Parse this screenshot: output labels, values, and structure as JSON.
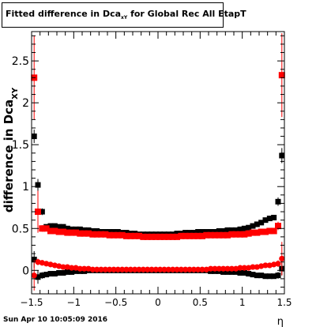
{
  "title": {
    "main": "Fitted difference in Dca",
    "sub": "xY",
    "rest": " for Global Rec All EtapT"
  },
  "datestamp": "Sun Apr 10 10:05:09 2016",
  "colors": {
    "black_series": "#000000",
    "red_series": "#ff0000",
    "frame": "#000000"
  },
  "chart_data": {
    "type": "scatter",
    "xlabel": "η",
    "ylabel_main": "difference in Dca",
    "ylabel_sub": "XY",
    "xlim": [
      -1.5,
      1.5
    ],
    "ylim": [
      -0.28,
      2.85
    ],
    "x_ticks": [
      -1.5,
      -1,
      -0.5,
      0,
      0.5,
      1,
      1.5
    ],
    "x_tick_labels": [
      "−1.5",
      "−1",
      "−0.5",
      "0",
      "0.5",
      "1",
      "1.5"
    ],
    "y_ticks": [
      0,
      0.5,
      1,
      1.5,
      2,
      2.5
    ],
    "y_tick_labels": [
      "0",
      "0.5",
      "1",
      "1.5",
      "2",
      "2.5"
    ],
    "grid": false,
    "series": [
      {
        "color": "black",
        "marker": "square",
        "role": "width",
        "x": [
          -1.47,
          -1.425,
          -1.375,
          -1.325,
          -1.275,
          -1.225,
          -1.175,
          -1.125,
          -1.075,
          -1.025,
          -0.975,
          -0.925,
          -0.875,
          -0.825,
          -0.775,
          -0.725,
          -0.675,
          -0.625,
          -0.575,
          -0.525,
          -0.475,
          -0.425,
          -0.375,
          -0.325,
          -0.275,
          -0.225,
          -0.175,
          -0.125,
          -0.075,
          -0.025,
          0.025,
          0.075,
          0.125,
          0.175,
          0.225,
          0.275,
          0.325,
          0.375,
          0.425,
          0.475,
          0.525,
          0.575,
          0.625,
          0.675,
          0.725,
          0.775,
          0.825,
          0.875,
          0.925,
          0.975,
          1.025,
          1.075,
          1.125,
          1.175,
          1.225,
          1.275,
          1.325,
          1.375,
          1.425,
          1.47
        ],
        "y": [
          1.6,
          1.02,
          0.7,
          0.52,
          0.53,
          0.53,
          0.52,
          0.52,
          0.5,
          0.49,
          0.49,
          0.49,
          0.48,
          0.48,
          0.47,
          0.47,
          0.46,
          0.46,
          0.46,
          0.46,
          0.46,
          0.45,
          0.45,
          0.44,
          0.44,
          0.43,
          0.43,
          0.43,
          0.43,
          0.43,
          0.43,
          0.43,
          0.43,
          0.43,
          0.44,
          0.44,
          0.45,
          0.45,
          0.45,
          0.46,
          0.46,
          0.46,
          0.46,
          0.46,
          0.47,
          0.47,
          0.48,
          0.48,
          0.48,
          0.49,
          0.5,
          0.51,
          0.53,
          0.55,
          0.57,
          0.6,
          0.62,
          0.63,
          0.82,
          1.37
        ],
        "err": [
          0.08,
          0.07,
          0.04,
          0.02,
          0.01,
          0.01,
          0.01,
          0.01,
          0.01,
          0.01,
          0.01,
          0.01,
          0.01,
          0.01,
          0.01,
          0.01,
          0.01,
          0.01,
          0.01,
          0.01,
          0.01,
          0.01,
          0.01,
          0.01,
          0.01,
          0.01,
          0.01,
          0.01,
          0.01,
          0.01,
          0.01,
          0.01,
          0.01,
          0.01,
          0.01,
          0.01,
          0.01,
          0.01,
          0.01,
          0.01,
          0.01,
          0.01,
          0.01,
          0.01,
          0.01,
          0.01,
          0.01,
          0.01,
          0.01,
          0.01,
          0.01,
          0.01,
          0.01,
          0.01,
          0.02,
          0.02,
          0.03,
          0.03,
          0.05,
          0.09
        ]
      },
      {
        "color": "black",
        "marker": "square",
        "role": "mean",
        "x": [
          -1.47,
          -1.425,
          -1.375,
          -1.325,
          -1.275,
          -1.225,
          -1.175,
          -1.125,
          -1.075,
          -1.025,
          -0.975,
          -0.925,
          -0.875,
          -0.825,
          -0.775,
          -0.725,
          -0.675,
          -0.625,
          -0.575,
          -0.525,
          -0.475,
          -0.425,
          -0.375,
          -0.325,
          -0.275,
          -0.225,
          -0.175,
          -0.125,
          -0.075,
          -0.025,
          0.025,
          0.075,
          0.125,
          0.175,
          0.225,
          0.275,
          0.325,
          0.375,
          0.425,
          0.475,
          0.525,
          0.575,
          0.625,
          0.675,
          0.725,
          0.775,
          0.825,
          0.875,
          0.925,
          0.975,
          1.025,
          1.075,
          1.125,
          1.175,
          1.225,
          1.275,
          1.325,
          1.375,
          1.425,
          1.47
        ],
        "y": [
          0.13,
          -0.08,
          -0.06,
          -0.05,
          -0.04,
          -0.04,
          -0.03,
          -0.03,
          -0.02,
          -0.02,
          -0.01,
          -0.01,
          -0.01,
          0.0,
          0.0,
          0.0,
          0.0,
          0.0,
          0.0,
          0.0,
          0.0,
          0.0,
          0.0,
          0.0,
          0.0,
          0.0,
          0.0,
          0.0,
          0.0,
          0.0,
          0.0,
          0.0,
          0.0,
          0.0,
          0.0,
          0.0,
          0.0,
          0.0,
          0.0,
          0.0,
          0.0,
          0.0,
          -0.01,
          -0.01,
          -0.01,
          -0.02,
          -0.02,
          -0.02,
          -0.02,
          -0.03,
          -0.03,
          -0.04,
          -0.05,
          -0.06,
          -0.06,
          -0.07,
          -0.07,
          -0.07,
          -0.06,
          0.02
        ],
        "err": [
          0.1,
          0.08,
          0.04,
          0.02,
          0.01,
          0.01,
          0.01,
          0.01,
          0.01,
          0.01,
          0.01,
          0.01,
          0.01,
          0.01,
          0.01,
          0.01,
          0.01,
          0.01,
          0.01,
          0.01,
          0.01,
          0.01,
          0.01,
          0.01,
          0.01,
          0.01,
          0.01,
          0.01,
          0.01,
          0.01,
          0.01,
          0.01,
          0.01,
          0.01,
          0.01,
          0.01,
          0.01,
          0.01,
          0.01,
          0.01,
          0.01,
          0.01,
          0.01,
          0.01,
          0.01,
          0.01,
          0.01,
          0.01,
          0.01,
          0.01,
          0.01,
          0.01,
          0.01,
          0.01,
          0.02,
          0.02,
          0.03,
          0.03,
          0.04,
          0.08
        ]
      },
      {
        "color": "red",
        "marker": "square",
        "role": "width",
        "x": [
          -1.47,
          -1.425,
          -1.375,
          -1.325,
          -1.275,
          -1.225,
          -1.175,
          -1.125,
          -1.075,
          -1.025,
          -0.975,
          -0.925,
          -0.875,
          -0.825,
          -0.775,
          -0.725,
          -0.675,
          -0.625,
          -0.575,
          -0.525,
          -0.475,
          -0.425,
          -0.375,
          -0.325,
          -0.275,
          -0.225,
          -0.175,
          -0.125,
          -0.075,
          -0.025,
          0.025,
          0.075,
          0.125,
          0.175,
          0.225,
          0.275,
          0.325,
          0.375,
          0.425,
          0.475,
          0.525,
          0.575,
          0.625,
          0.675,
          0.725,
          0.775,
          0.825,
          0.875,
          0.925,
          0.975,
          1.025,
          1.075,
          1.125,
          1.175,
          1.225,
          1.275,
          1.325,
          1.375,
          1.425,
          1.47
        ],
        "y": [
          2.3,
          0.7,
          0.5,
          0.5,
          0.47,
          0.47,
          0.46,
          0.46,
          0.45,
          0.45,
          0.45,
          0.44,
          0.44,
          0.44,
          0.43,
          0.43,
          0.43,
          0.43,
          0.42,
          0.42,
          0.42,
          0.42,
          0.41,
          0.41,
          0.41,
          0.41,
          0.4,
          0.4,
          0.4,
          0.4,
          0.4,
          0.4,
          0.4,
          0.4,
          0.4,
          0.41,
          0.41,
          0.41,
          0.41,
          0.41,
          0.41,
          0.42,
          0.42,
          0.42,
          0.42,
          0.42,
          0.42,
          0.43,
          0.43,
          0.43,
          0.43,
          0.44,
          0.45,
          0.45,
          0.46,
          0.46,
          0.47,
          0.47,
          0.53,
          2.33
        ],
        "err": [
          0.5,
          0.25,
          0.04,
          0.02,
          0.01,
          0.01,
          0.01,
          0.01,
          0.01,
          0.01,
          0.01,
          0.01,
          0.01,
          0.01,
          0.01,
          0.01,
          0.01,
          0.01,
          0.01,
          0.01,
          0.01,
          0.01,
          0.01,
          0.01,
          0.01,
          0.01,
          0.01,
          0.01,
          0.01,
          0.01,
          0.01,
          0.01,
          0.01,
          0.01,
          0.01,
          0.01,
          0.01,
          0.01,
          0.01,
          0.01,
          0.01,
          0.01,
          0.01,
          0.01,
          0.01,
          0.01,
          0.01,
          0.01,
          0.01,
          0.01,
          0.01,
          0.01,
          0.01,
          0.01,
          0.01,
          0.02,
          0.02,
          0.03,
          0.05,
          0.5
        ]
      },
      {
        "color": "red",
        "marker": "circle",
        "role": "mean",
        "x": [
          -1.47,
          -1.425,
          -1.375,
          -1.325,
          -1.275,
          -1.225,
          -1.175,
          -1.125,
          -1.075,
          -1.025,
          -0.975,
          -0.925,
          -0.875,
          -0.825,
          -0.775,
          -0.725,
          -0.675,
          -0.625,
          -0.575,
          -0.525,
          -0.475,
          -0.425,
          -0.375,
          -0.325,
          -0.275,
          -0.225,
          -0.175,
          -0.125,
          -0.075,
          -0.025,
          0.025,
          0.075,
          0.125,
          0.175,
          0.225,
          0.275,
          0.325,
          0.375,
          0.425,
          0.475,
          0.525,
          0.575,
          0.625,
          0.675,
          0.725,
          0.775,
          0.825,
          0.875,
          0.925,
          0.975,
          1.025,
          1.075,
          1.125,
          1.175,
          1.225,
          1.275,
          1.325,
          1.375,
          1.425,
          1.47
        ],
        "y": [
          -0.06,
          0.1,
          0.09,
          0.08,
          0.07,
          0.06,
          0.05,
          0.04,
          0.04,
          0.03,
          0.03,
          0.02,
          0.02,
          0.02,
          0.01,
          0.01,
          0.01,
          0.01,
          0.01,
          0.01,
          0.01,
          0.01,
          0.01,
          0.01,
          0.01,
          0.01,
          0.01,
          0.01,
          0.01,
          0.01,
          0.01,
          0.01,
          0.01,
          0.01,
          0.01,
          0.01,
          0.01,
          0.01,
          0.01,
          0.01,
          0.01,
          0.01,
          0.02,
          0.02,
          0.02,
          0.02,
          0.02,
          0.02,
          0.02,
          0.03,
          0.03,
          0.03,
          0.04,
          0.04,
          0.05,
          0.06,
          0.06,
          0.07,
          0.08,
          0.14
        ],
        "err": [
          0.18,
          0.04,
          0.03,
          0.02,
          0.01,
          0.01,
          0.01,
          0.01,
          0.01,
          0.01,
          0.01,
          0.01,
          0.01,
          0.01,
          0.01,
          0.01,
          0.01,
          0.01,
          0.01,
          0.01,
          0.01,
          0.01,
          0.01,
          0.01,
          0.01,
          0.01,
          0.01,
          0.01,
          0.01,
          0.01,
          0.01,
          0.01,
          0.01,
          0.01,
          0.01,
          0.01,
          0.01,
          0.01,
          0.01,
          0.01,
          0.01,
          0.01,
          0.01,
          0.01,
          0.01,
          0.01,
          0.01,
          0.01,
          0.01,
          0.01,
          0.01,
          0.01,
          0.01,
          0.01,
          0.01,
          0.02,
          0.02,
          0.03,
          0.04,
          0.2
        ]
      }
    ]
  }
}
